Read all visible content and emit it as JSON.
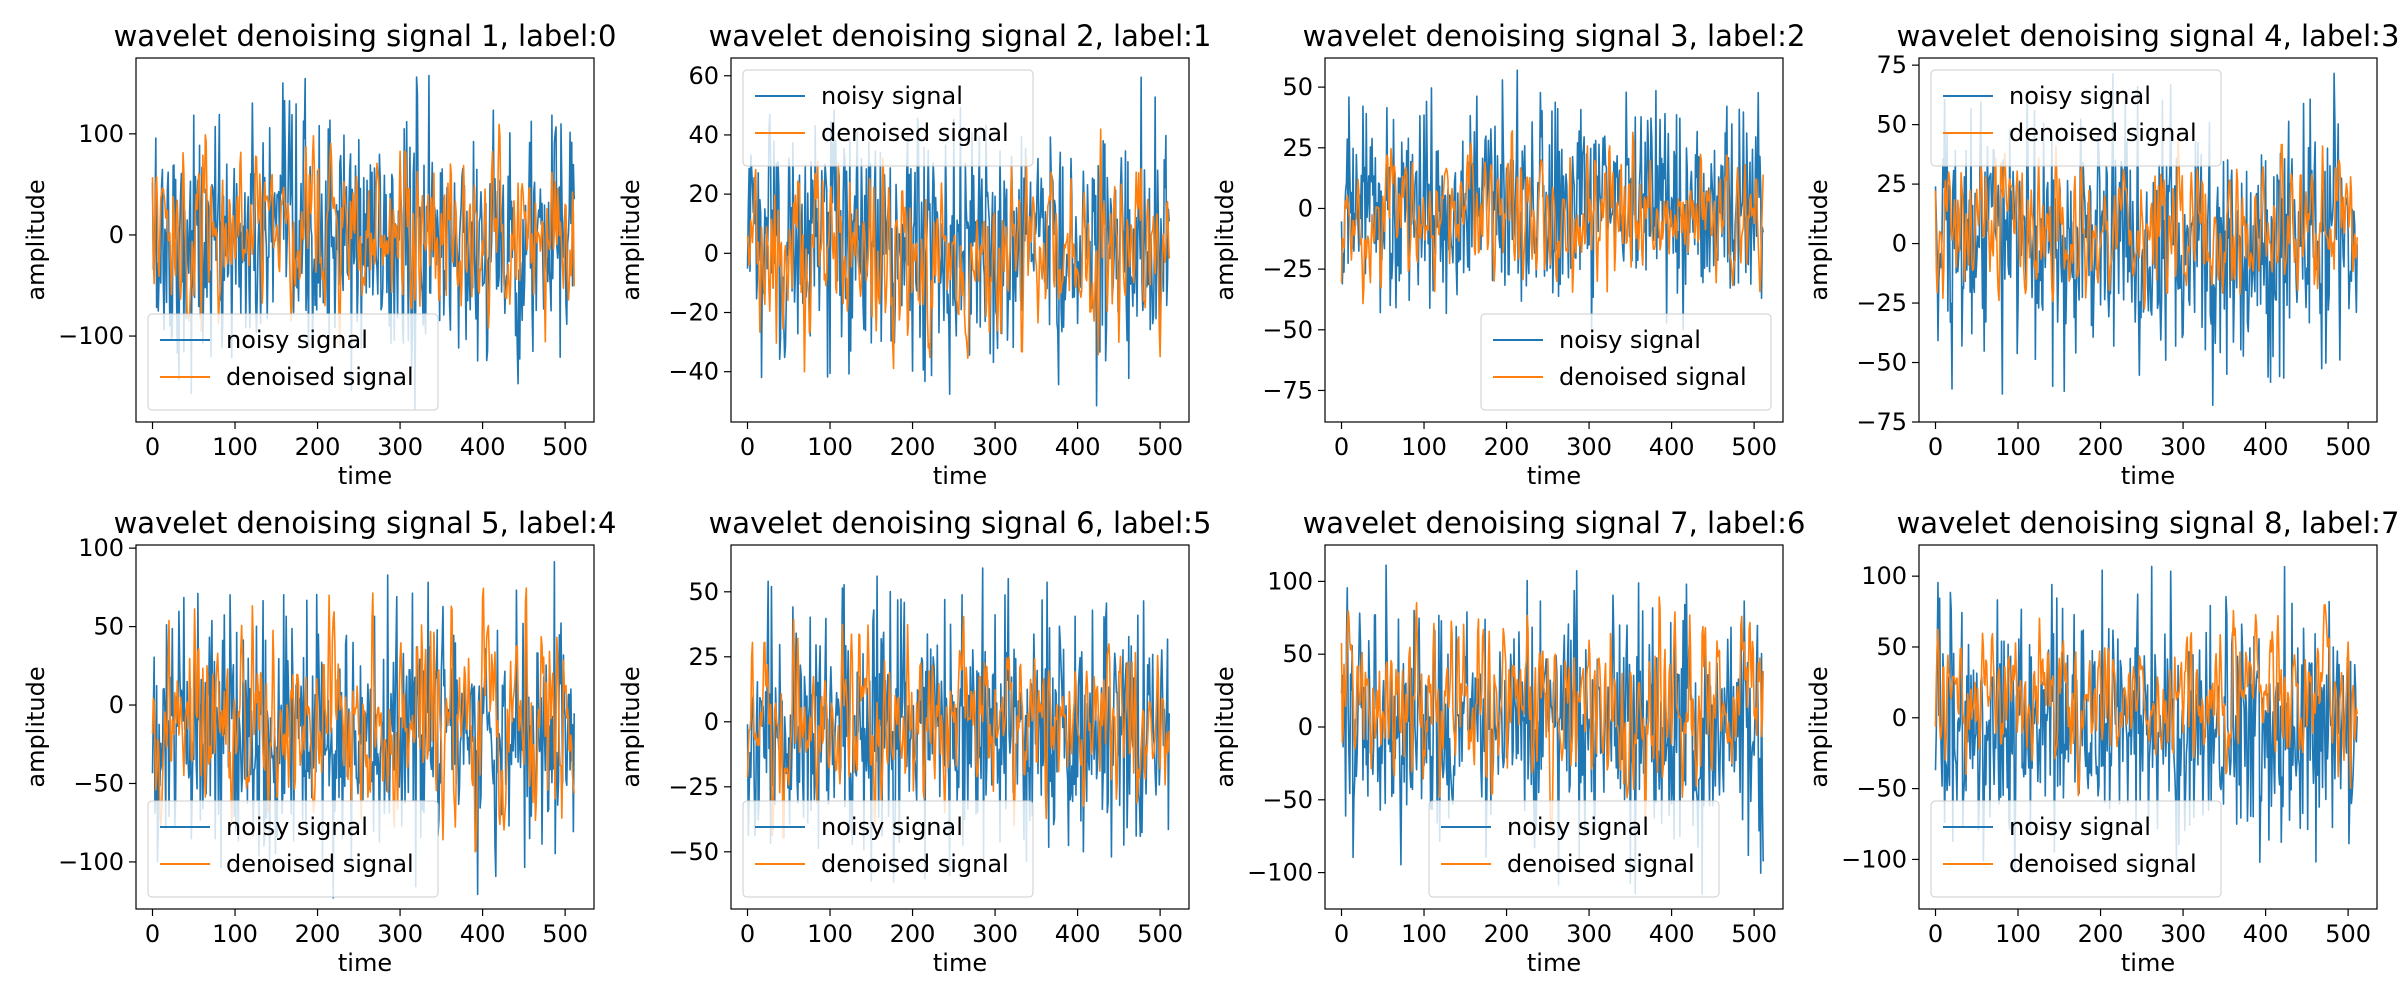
{
  "figure": {
    "colors": {
      "noisy": "#1f77b4",
      "denoised": "#ff7f0e"
    }
  },
  "chart_data": [
    {
      "type": "line",
      "title": "wavelet denoising signal 1, label:0",
      "xlabel": "time",
      "ylabel": "amplitude",
      "xlim": [
        -20,
        535
      ],
      "ylim": [
        -185,
        175
      ],
      "xticks": [
        0,
        100,
        200,
        300,
        400,
        500
      ],
      "yticks": [
        -100,
        0,
        100
      ],
      "legend_position": "lower-left",
      "noisy_range": [
        -175,
        162
      ],
      "denoised_range": [
        -110,
        110
      ],
      "series": [
        {
          "name": "noisy signal",
          "color": "#1f77b4",
          "n_points": 512
        },
        {
          "name": "denoised signal",
          "color": "#ff7f0e",
          "n_points": 512
        }
      ]
    },
    {
      "type": "line",
      "title": "wavelet denoising signal 2, label:1",
      "xlabel": "time",
      "ylabel": "amplitude",
      "xlim": [
        -20,
        535
      ],
      "ylim": [
        -57,
        66
      ],
      "xticks": [
        0,
        100,
        200,
        300,
        400,
        500
      ],
      "yticks": [
        -40,
        -20,
        0,
        20,
        40,
        60
      ],
      "legend_position": "upper-left",
      "noisy_range": [
        -52,
        62
      ],
      "denoised_range": [
        -42,
        42
      ],
      "series": [
        {
          "name": "noisy signal",
          "color": "#1f77b4",
          "n_points": 512
        },
        {
          "name": "denoised signal",
          "color": "#ff7f0e",
          "n_points": 512
        }
      ]
    },
    {
      "type": "line",
      "title": "wavelet denoising signal 3, label:2",
      "xlabel": "time",
      "ylabel": "amplitude",
      "xlim": [
        -20,
        535
      ],
      "ylim": [
        -88,
        62
      ],
      "xticks": [
        0,
        100,
        200,
        300,
        400,
        500
      ],
      "yticks": [
        -75,
        -50,
        -25,
        0,
        25,
        50
      ],
      "legend_position": "lower-right",
      "noisy_range": [
        -55,
        57
      ],
      "denoised_range": [
        -40,
        32
      ],
      "series": [
        {
          "name": "noisy signal",
          "color": "#1f77b4",
          "n_points": 512
        },
        {
          "name": "denoised signal",
          "color": "#ff7f0e",
          "n_points": 512
        }
      ]
    },
    {
      "type": "line",
      "title": "wavelet denoising signal 4, label:3",
      "xlabel": "time",
      "ylabel": "amplitude",
      "xlim": [
        -20,
        535
      ],
      "ylim": [
        -75,
        78
      ],
      "xticks": [
        0,
        100,
        200,
        300,
        400,
        500
      ],
      "yticks": [
        -75,
        -50,
        -25,
        0,
        25,
        50,
        75
      ],
      "legend_position": "upper-left",
      "noisy_range": [
        -68,
        73
      ],
      "denoised_range": [
        -35,
        45
      ],
      "series": [
        {
          "name": "noisy signal",
          "color": "#1f77b4",
          "n_points": 512
        },
        {
          "name": "denoised signal",
          "color": "#ff7f0e",
          "n_points": 512
        }
      ]
    },
    {
      "type": "line",
      "title": "wavelet denoising signal 5, label:4",
      "xlabel": "time",
      "ylabel": "amplitude",
      "xlim": [
        -20,
        535
      ],
      "ylim": [
        -130,
        102
      ],
      "xticks": [
        0,
        100,
        200,
        300,
        400,
        500
      ],
      "yticks": [
        -100,
        -50,
        0,
        50,
        100
      ],
      "legend_position": "lower-left",
      "noisy_range": [
        -123,
        92
      ],
      "denoised_range": [
        -95,
        75
      ],
      "series": [
        {
          "name": "noisy signal",
          "color": "#1f77b4",
          "n_points": 512
        },
        {
          "name": "denoised signal",
          "color": "#ff7f0e",
          "n_points": 512
        }
      ]
    },
    {
      "type": "line",
      "title": "wavelet denoising signal 6, label:5",
      "xlabel": "time",
      "ylabel": "amplitude",
      "xlim": [
        -20,
        535
      ],
      "ylim": [
        -72,
        68
      ],
      "xticks": [
        0,
        100,
        200,
        300,
        400,
        500
      ],
      "yticks": [
        -50,
        -25,
        0,
        25,
        50
      ],
      "legend_position": "lower-left",
      "noisy_range": [
        -68,
        63
      ],
      "denoised_range": [
        -45,
        45
      ],
      "series": [
        {
          "name": "noisy signal",
          "color": "#1f77b4",
          "n_points": 512
        },
        {
          "name": "denoised signal",
          "color": "#ff7f0e",
          "n_points": 512
        }
      ]
    },
    {
      "type": "line",
      "title": "wavelet denoising signal 7, label:6",
      "xlabel": "time",
      "ylabel": "amplitude",
      "xlim": [
        -20,
        535
      ],
      "ylim": [
        -125,
        125
      ],
      "xticks": [
        0,
        100,
        200,
        300,
        400,
        500
      ],
      "yticks": [
        -100,
        -50,
        0,
        50,
        100
      ],
      "legend_position": "lower-center",
      "noisy_range": [
        -115,
        112
      ],
      "denoised_range": [
        -70,
        105
      ],
      "series": [
        {
          "name": "noisy signal",
          "color": "#1f77b4",
          "n_points": 512
        },
        {
          "name": "denoised signal",
          "color": "#ff7f0e",
          "n_points": 512
        }
      ]
    },
    {
      "type": "line",
      "title": "wavelet denoising signal 8, label:7",
      "xlabel": "time",
      "ylabel": "amplitude",
      "xlim": [
        -20,
        535
      ],
      "ylim": [
        -135,
        122
      ],
      "xticks": [
        0,
        100,
        200,
        300,
        400,
        500
      ],
      "yticks": [
        -100,
        -50,
        0,
        50,
        100
      ],
      "legend_position": "lower-left",
      "noisy_range": [
        -118,
        108
      ],
      "denoised_range": [
        -55,
        80
      ],
      "series": [
        {
          "name": "noisy signal",
          "color": "#1f77b4",
          "n_points": 512
        },
        {
          "name": "denoised signal",
          "color": "#ff7f0e",
          "n_points": 512
        }
      ]
    }
  ]
}
